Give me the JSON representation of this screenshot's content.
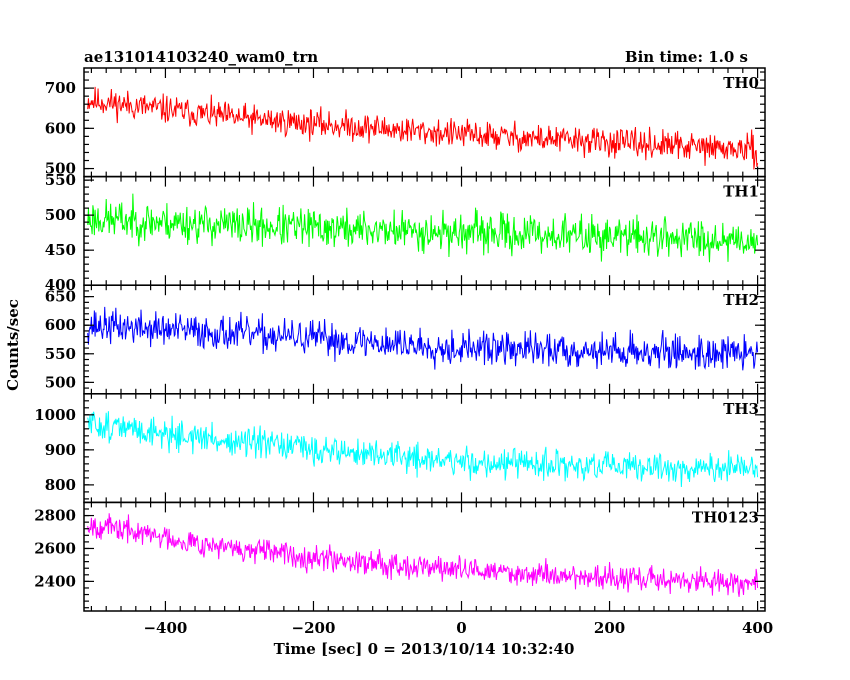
{
  "header": {
    "title": "ae131014103240_wam0_trn",
    "bin_time": "Bin time: 1.0 s"
  },
  "chart_data": {
    "type": "line",
    "title": "ae131014103240_wam0_trn",
    "xlabel": "Time [sec] 0 = 2013/10/14 10:32:40",
    "ylabel": "Counts/sec",
    "xlim": [
      -510,
      410
    ],
    "x_ticks": [
      -400,
      -200,
      0,
      200,
      400
    ],
    "x_tick_labels": [
      "−400",
      "−200",
      "0",
      "200",
      "400"
    ],
    "x_range": [
      -505,
      400
    ],
    "panels": [
      {
        "name": "TH0",
        "color": "#ff0000",
        "ylim": [
          480,
          750
        ],
        "y_ticks": [
          500,
          600,
          700
        ],
        "y_tick_labels": [
          "500",
          "600",
          "700"
        ],
        "trend": [
          [
            -505,
            670
          ],
          [
            -300,
            625
          ],
          [
            0,
            585
          ],
          [
            200,
            565
          ],
          [
            400,
            545
          ]
        ],
        "noise": 33,
        "seed": 11
      },
      {
        "name": "TH1",
        "color": "#00ff00",
        "ylim": [
          400,
          555
        ],
        "y_ticks": [
          400,
          450,
          500,
          550
        ],
        "y_tick_labels": [
          "400",
          "450",
          "500",
          "550"
        ],
        "trend": [
          [
            -505,
            495
          ],
          [
            -300,
            485
          ],
          [
            0,
            475
          ],
          [
            200,
            470
          ],
          [
            400,
            465
          ]
        ],
        "noise": 26,
        "seed": 23
      },
      {
        "name": "TH2",
        "color": "#0000ff",
        "ylim": [
          480,
          670
        ],
        "y_ticks": [
          500,
          550,
          600,
          650
        ],
        "y_tick_labels": [
          "500",
          "550",
          "600",
          "650"
        ],
        "trend": [
          [
            -505,
            600
          ],
          [
            -300,
            585
          ],
          [
            0,
            560
          ],
          [
            200,
            555
          ],
          [
            400,
            550
          ]
        ],
        "noise": 28,
        "seed": 37
      },
      {
        "name": "TH3",
        "color": "#00ffff",
        "ylim": [
          750,
          1060
        ],
        "y_ticks": [
          800,
          900,
          1000
        ],
        "y_tick_labels": [
          "800",
          "900",
          "1000"
        ],
        "trend": [
          [
            -505,
            975
          ],
          [
            -300,
            920
          ],
          [
            0,
            865
          ],
          [
            200,
            850
          ],
          [
            400,
            845
          ]
        ],
        "noise": 40,
        "seed": 51
      },
      {
        "name": "TH0123",
        "color": "#ff00ff",
        "ylim": [
          2220,
          2880
        ],
        "y_ticks": [
          2400,
          2600,
          2800
        ],
        "y_tick_labels": [
          "2400",
          "2600",
          "2800"
        ],
        "trend": [
          [
            -505,
            2750
          ],
          [
            -300,
            2590
          ],
          [
            0,
            2470
          ],
          [
            200,
            2420
          ],
          [
            400,
            2390
          ]
        ],
        "noise": 70,
        "seed": 67
      }
    ]
  }
}
